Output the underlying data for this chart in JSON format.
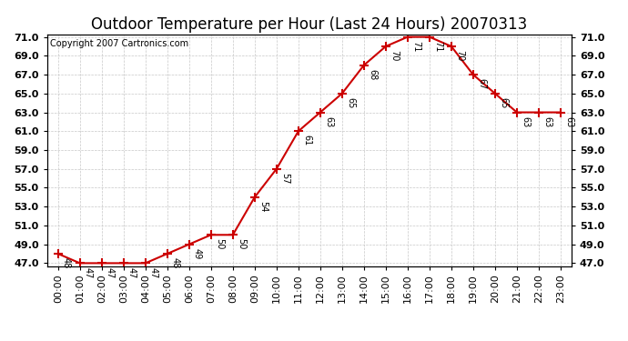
{
  "title": "Outdoor Temperature per Hour (Last 24 Hours) 20070313",
  "copyright": "Copyright 2007 Cartronics.com",
  "hours": [
    "00:00",
    "01:00",
    "02:00",
    "03:00",
    "04:00",
    "05:00",
    "06:00",
    "07:00",
    "08:00",
    "09:00",
    "10:00",
    "11:00",
    "12:00",
    "13:00",
    "14:00",
    "15:00",
    "16:00",
    "17:00",
    "18:00",
    "19:00",
    "20:00",
    "21:00",
    "22:00",
    "23:00"
  ],
  "temps": [
    48,
    47,
    47,
    47,
    47,
    48,
    49,
    50,
    50,
    54,
    57,
    61,
    63,
    65,
    68,
    70,
    71,
    71,
    70,
    67,
    65,
    63,
    63,
    63
  ],
  "ylim_min": 47.0,
  "ylim_max": 71.0,
  "yticks": [
    47.0,
    49.0,
    51.0,
    53.0,
    55.0,
    57.0,
    59.0,
    61.0,
    63.0,
    65.0,
    67.0,
    69.0,
    71.0
  ],
  "line_color": "#cc0000",
  "bg_color": "#ffffff",
  "grid_color": "#c8c8c8",
  "title_fontsize": 12,
  "tick_fontsize": 8,
  "annot_fontsize": 7,
  "copyright_fontsize": 7
}
